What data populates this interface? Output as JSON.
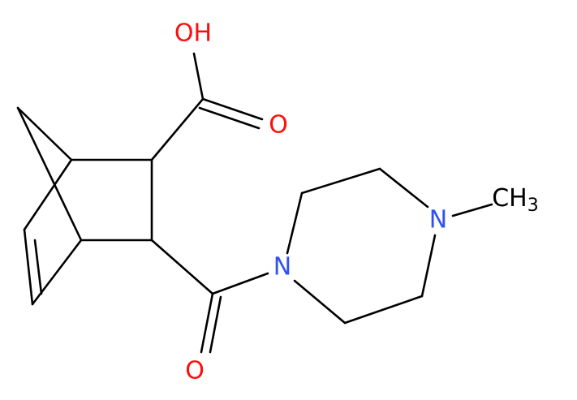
{
  "atoms": [
    {
      "label": "OH"
    },
    {
      "label": "O"
    },
    {
      "label": "O"
    },
    {
      "label": "N"
    },
    {
      "label": "N"
    },
    {
      "label": "CH",
      "subscript": "3"
    }
  ]
}
